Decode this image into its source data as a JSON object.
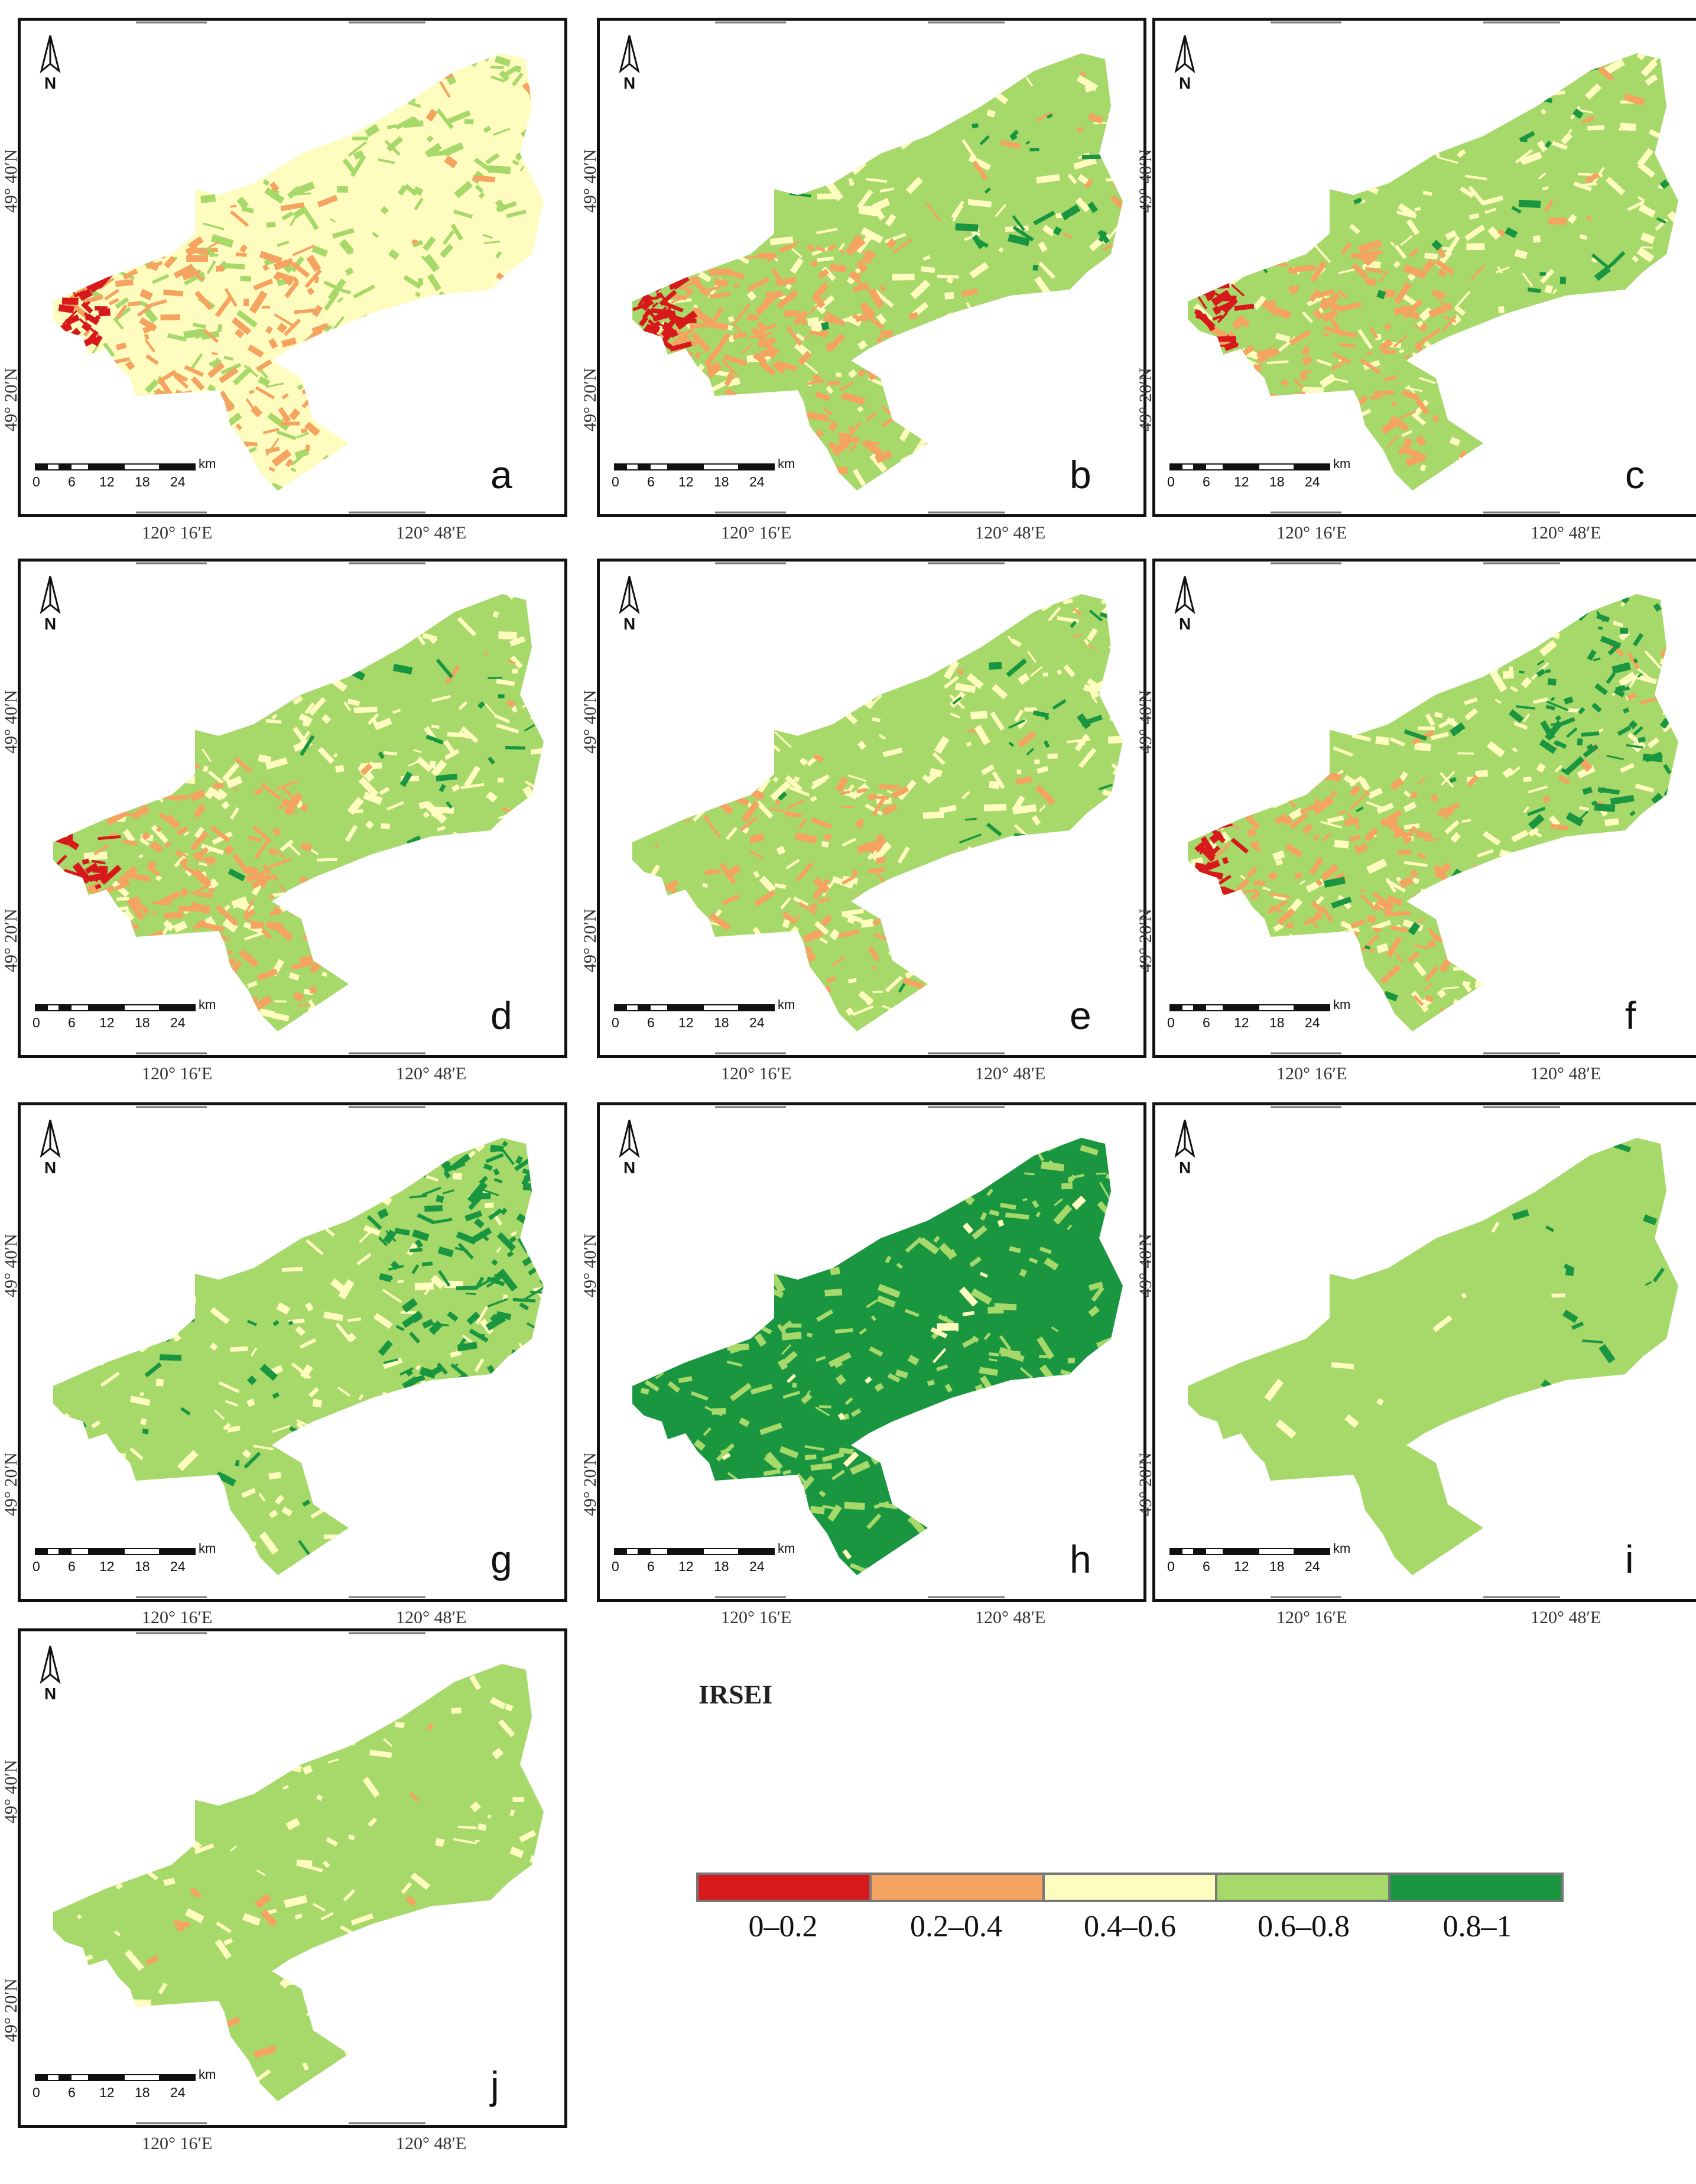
{
  "legend": {
    "title": "IRSEI",
    "classes": [
      {
        "label": "0–0.2",
        "color": "#d7191c"
      },
      {
        "label": "0.2–0.4",
        "color": "#f4a460"
      },
      {
        "label": "0.4–0.6",
        "color": "#fffcbf"
      },
      {
        "label": "0.6–0.8",
        "color": "#a6d96a"
      },
      {
        "label": "0.8–1",
        "color": "#1a9641"
      }
    ]
  },
  "axes": {
    "lat_top": "49° 40′N",
    "lat_bottom": "49° 20′N",
    "lon_left": "120° 16′E",
    "lon_right": "120° 48′E"
  },
  "scale_bar": {
    "ticks": [
      "0",
      "6",
      "12",
      "18",
      "24"
    ],
    "unit": "km"
  },
  "north_label": "N",
  "panels": [
    {
      "letter": "a",
      "base": "#fffcbf",
      "mix": [
        [
          "#a6d96a",
          0.55
        ],
        [
          "#f4a460",
          0.35
        ],
        [
          "#d7191c",
          0.04
        ]
      ]
    },
    {
      "letter": "b",
      "base": "#a6d96a",
      "mix": [
        [
          "#fffcbf",
          0.45
        ],
        [
          "#f4a460",
          0.35
        ],
        [
          "#d7191c",
          0.07
        ],
        [
          "#1a9641",
          0.05
        ]
      ]
    },
    {
      "letter": "c",
      "base": "#a6d96a",
      "mix": [
        [
          "#fffcbf",
          0.45
        ],
        [
          "#f4a460",
          0.3
        ],
        [
          "#d7191c",
          0.04
        ],
        [
          "#1a9641",
          0.05
        ]
      ]
    },
    {
      "letter": "d",
      "base": "#a6d96a",
      "mix": [
        [
          "#fffcbf",
          0.5
        ],
        [
          "#f4a460",
          0.3
        ],
        [
          "#d7191c",
          0.03
        ],
        [
          "#1a9641",
          0.04
        ]
      ]
    },
    {
      "letter": "e",
      "base": "#a6d96a",
      "mix": [
        [
          "#fffcbf",
          0.55
        ],
        [
          "#f4a460",
          0.2
        ],
        [
          "#1a9641",
          0.05
        ]
      ]
    },
    {
      "letter": "f",
      "base": "#a6d96a",
      "mix": [
        [
          "#fffcbf",
          0.45
        ],
        [
          "#f4a460",
          0.3
        ],
        [
          "#1a9641",
          0.18
        ],
        [
          "#d7191c",
          0.03
        ]
      ]
    },
    {
      "letter": "g",
      "base": "#a6d96a",
      "mix": [
        [
          "#fffcbf",
          0.3
        ],
        [
          "#1a9641",
          0.3
        ]
      ]
    },
    {
      "letter": "h",
      "base": "#1a9641",
      "mix": [
        [
          "#a6d96a",
          0.55
        ],
        [
          "#fffcbf",
          0.04
        ]
      ]
    },
    {
      "letter": "i",
      "base": "#a6d96a",
      "mix": [
        [
          "#fffcbf",
          0.03
        ],
        [
          "#1a9641",
          0.02
        ]
      ]
    },
    {
      "letter": "j",
      "base": "#a6d96a",
      "mix": [
        [
          "#fffcbf",
          0.25
        ],
        [
          "#f4a460",
          0.02
        ]
      ]
    }
  ]
}
